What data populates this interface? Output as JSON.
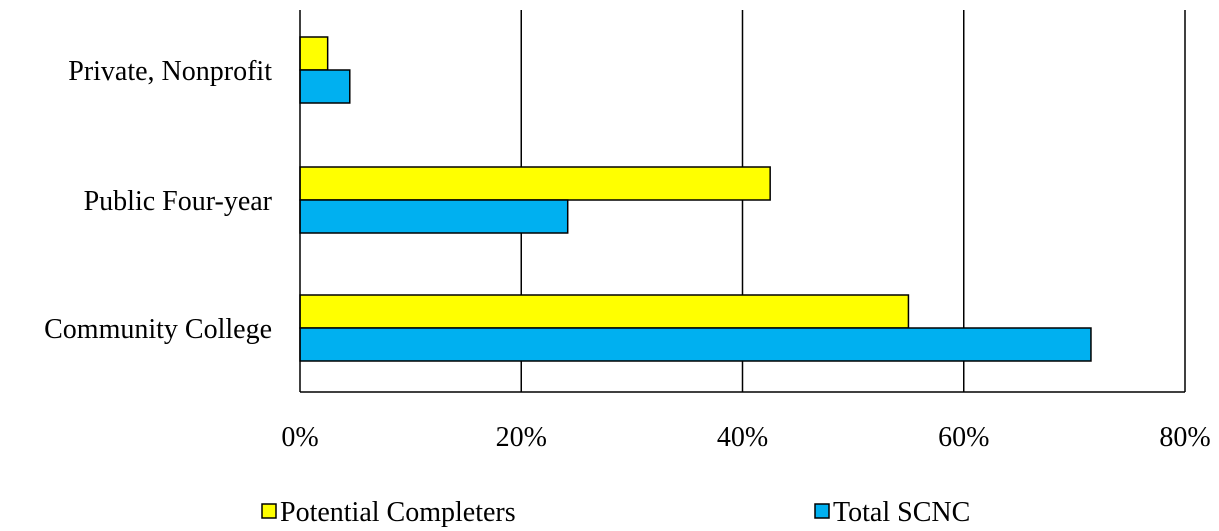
{
  "chart_data": {
    "type": "bar",
    "orientation": "horizontal",
    "categories": [
      "Private, Nonprofit",
      "Public Four-year",
      "Community College"
    ],
    "series": [
      {
        "name": "Potential Completers",
        "color": "#FFFF00",
        "values": [
          2.5,
          42.5,
          55
        ]
      },
      {
        "name": "Total SCNC",
        "color": "#00B0F0",
        "values": [
          4.5,
          24.2,
          71.5
        ]
      }
    ],
    "xlim": [
      0,
      80
    ],
    "xticks": [
      0,
      20,
      40,
      60,
      80
    ],
    "xtick_labels": [
      "0%",
      "20%",
      "40%",
      "60%",
      "80%"
    ],
    "grid": "vertical",
    "legend_position": "bottom"
  }
}
